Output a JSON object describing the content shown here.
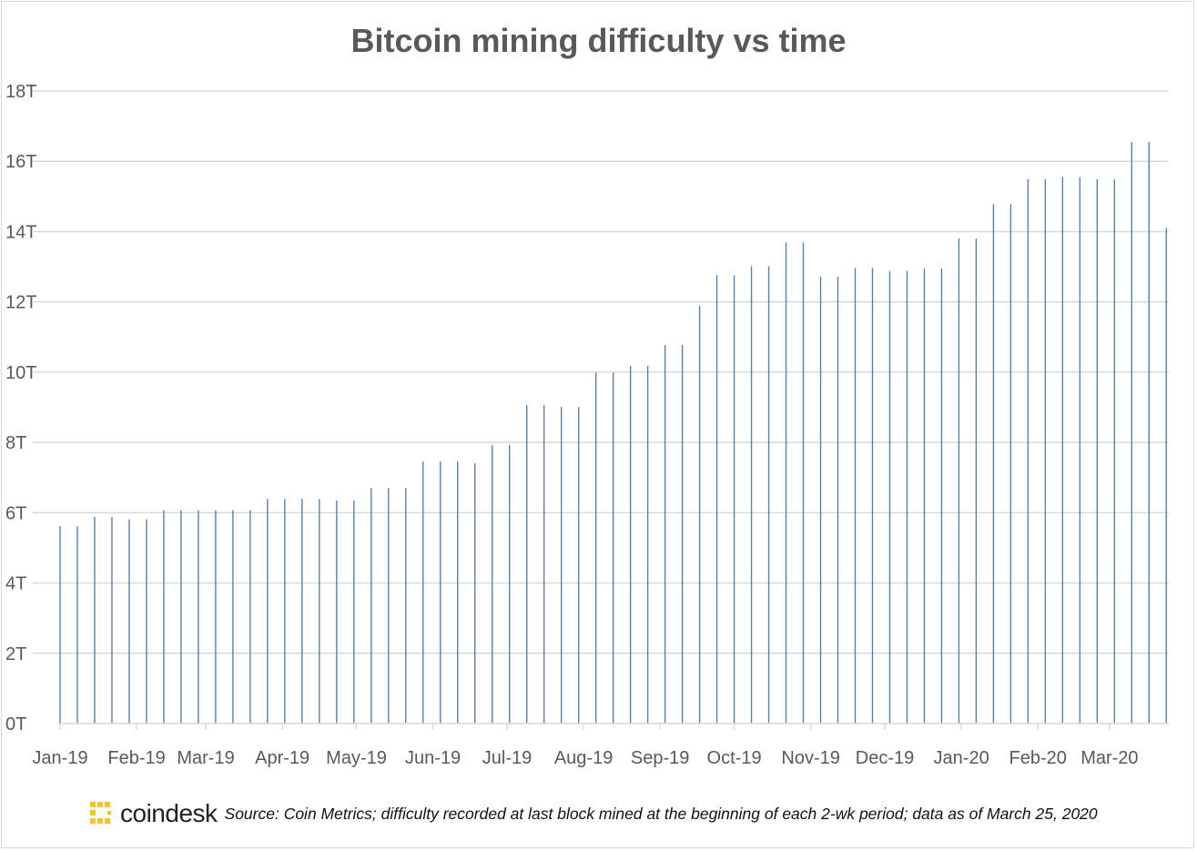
{
  "colors": {
    "bar": "#5b7fa6",
    "grid": "#d9d9d9",
    "text": "#595959",
    "logo": "#f7c325"
  },
  "footer": {
    "logo_text": "coindesk",
    "logo_icon": "coindesk-logo-icon",
    "source": "Source: Coin Metrics; difficulty recorded at last block mined at the beginning of each 2-wk period; data as of March 25, 2020"
  },
  "chart_data": {
    "type": "bar",
    "title": "Bitcoin mining difficulty vs time",
    "xlabel": "",
    "ylabel": "",
    "ylim": [
      0,
      18
    ],
    "y_unit_suffix": "T",
    "y_ticks": [
      "0T",
      "2T",
      "4T",
      "6T",
      "8T",
      "10T",
      "12T",
      "14T",
      "16T",
      "18T"
    ],
    "x_ticks": [
      "Jan-19",
      "Feb-19",
      "Mar-19",
      "Apr-19",
      "May-19",
      "Jun-19",
      "Jul-19",
      "Aug-19",
      "Sep-19",
      "Oct-19",
      "Nov-19",
      "Dec-19",
      "Jan-20",
      "Feb-20",
      "Mar-20"
    ],
    "x_range": [
      "2019-01-01",
      "2020-03-25"
    ],
    "grid": true,
    "legend": "none",
    "series": [
      {
        "dates": [
          "2019-01-01",
          "2019-01-08",
          "2019-01-15",
          "2019-01-22",
          "2019-01-29",
          "2019-02-05",
          "2019-02-12",
          "2019-02-19",
          "2019-02-26",
          "2019-03-05",
          "2019-03-12",
          "2019-03-19",
          "2019-03-26",
          "2019-04-02",
          "2019-04-09",
          "2019-04-16",
          "2019-04-23",
          "2019-04-30",
          "2019-05-07",
          "2019-05-14",
          "2019-05-21",
          "2019-05-28",
          "2019-06-04",
          "2019-06-11",
          "2019-06-18",
          "2019-06-25",
          "2019-07-02",
          "2019-07-09",
          "2019-07-16",
          "2019-07-23",
          "2019-07-30",
          "2019-08-06",
          "2019-08-13",
          "2019-08-20",
          "2019-08-27",
          "2019-09-03",
          "2019-09-10",
          "2019-09-17",
          "2019-09-24",
          "2019-10-01",
          "2019-10-08",
          "2019-10-15",
          "2019-10-22",
          "2019-10-29",
          "2019-11-05",
          "2019-11-12",
          "2019-11-19",
          "2019-11-26",
          "2019-12-03",
          "2019-12-10",
          "2019-12-17",
          "2019-12-24",
          "2019-12-31",
          "2020-01-07",
          "2020-01-14",
          "2020-01-21",
          "2020-01-28",
          "2020-02-04",
          "2020-02-11",
          "2020-02-18",
          "2020-02-25",
          "2020-03-03",
          "2020-03-10",
          "2020-03-17",
          "2020-03-24"
        ],
        "values": [
          5.62,
          5.62,
          5.88,
          5.88,
          5.81,
          5.81,
          6.07,
          6.07,
          6.07,
          6.07,
          6.07,
          6.07,
          6.39,
          6.39,
          6.39,
          6.39,
          6.35,
          6.35,
          6.7,
          6.7,
          6.7,
          7.46,
          7.46,
          7.46,
          7.41,
          7.93,
          7.93,
          9.06,
          9.06,
          9.01,
          9.01,
          9.99,
          9.99,
          10.18,
          10.18,
          10.77,
          10.77,
          11.89,
          12.76,
          12.76,
          13.01,
          13.01,
          13.69,
          13.69,
          12.72,
          12.72,
          12.97,
          12.97,
          12.88,
          12.88,
          12.95,
          12.95,
          13.8,
          13.8,
          14.78,
          14.78,
          15.49,
          15.49,
          15.55,
          15.55,
          15.49,
          15.49,
          16.55,
          16.55,
          14.1
        ]
      }
    ]
  }
}
